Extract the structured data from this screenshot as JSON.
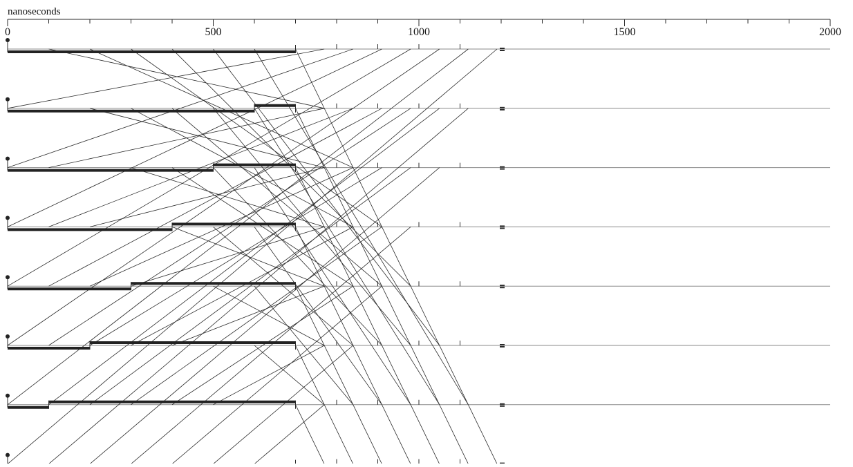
{
  "axis": {
    "unit_label": "nanoseconds",
    "min": 0,
    "max": 2000,
    "labeled_ticks": [
      "0",
      "500",
      "1000",
      "1500",
      "2000"
    ],
    "minor_tick_step": 100
  },
  "timeline": {
    "lanes": 8,
    "step_ns": 100,
    "mid_ns": 700,
    "end_ns": 1200,
    "colors": {
      "line": "#2a2a2a",
      "thin_line": "#888888",
      "thick_bar": "#222222"
    }
  }
}
